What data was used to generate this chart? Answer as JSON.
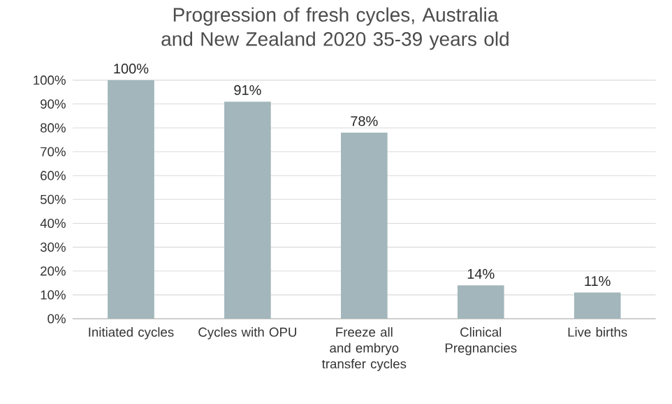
{
  "chart_data": {
    "type": "bar",
    "title": "Progression of fresh cycles, Australia and New Zealand 2020 35-39 years old",
    "categories": [
      "Initiated cycles",
      "Cycles with OPU",
      "Freeze all and embryo transfer cycles",
      "Clinical Pregnancies",
      "Live births"
    ],
    "values": [
      100,
      91,
      78,
      14,
      11
    ],
    "value_labels": [
      "100%",
      "91%",
      "78%",
      "14%",
      "11%"
    ],
    "color": "#a2b6bb",
    "ylim": [
      0,
      100
    ],
    "yticks": [
      {
        "value": 0,
        "label": "0%"
      },
      {
        "value": 10,
        "label": "10%"
      },
      {
        "value": 20,
        "label": "20%"
      },
      {
        "value": 30,
        "label": "30%"
      },
      {
        "value": 40,
        "label": "40%"
      },
      {
        "value": 50,
        "label": "50%"
      },
      {
        "value": 60,
        "label": "60%"
      },
      {
        "value": 70,
        "label": "70%"
      },
      {
        "value": 80,
        "label": "80%"
      },
      {
        "value": 90,
        "label": "90%"
      },
      {
        "value": 100,
        "label": "100%"
      }
    ],
    "grid": "y"
  }
}
